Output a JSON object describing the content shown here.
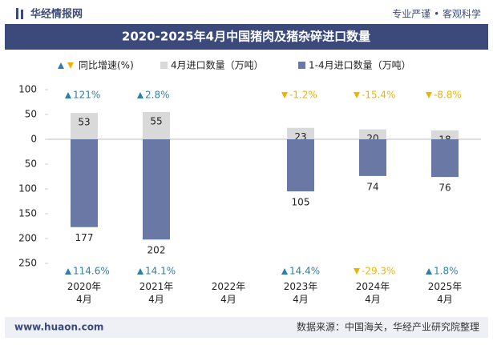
{
  "header": {
    "brand": "华经情报网",
    "slogan": "专业严谨 • 客观科学"
  },
  "footer": {
    "site": "www.huaon.com",
    "source": "数据来源：中国海关，华经产业研究院整理"
  },
  "chart_data": {
    "type": "bar",
    "title": "2020-2025年4月中国猪肉及猪杂碎进口数量",
    "categories": [
      "2020年4月",
      "2021年4月",
      "2022年4月",
      "2023年4月",
      "2024年4月",
      "2025年4月"
    ],
    "series": [
      {
        "name": "4月进口数量（万吨）",
        "color": "#d9d9d9",
        "values": [
          53,
          55,
          null,
          23,
          20,
          18
        ]
      },
      {
        "name": "1-4月进口数量（万吨）",
        "color": "#6a78a6",
        "values": [
          -177,
          -202,
          null,
          -105,
          -74,
          -76
        ],
        "value_labels": [
          "177",
          "202",
          null,
          "105",
          "74",
          "76"
        ]
      }
    ],
    "growth_name": "同比增速(%)",
    "growth": [
      {
        "values": [
          121,
          2.8,
          null,
          -1.2,
          -15.4,
          -8.8
        ],
        "value_labels": [
          "121%",
          "2.8%",
          null,
          "-1.2%",
          "-15.4%",
          "-8.8%"
        ]
      },
      {
        "values": [
          114.6,
          14.1,
          null,
          14.4,
          -29.3,
          1.8
        ],
        "value_labels": [
          "114.6%",
          "14.1%",
          null,
          "14.4%",
          "-29.3%",
          "1.8%"
        ]
      }
    ],
    "up_color": "#2f7fa6",
    "down_color": "#f0b400",
    "ylim": [
      -250,
      100
    ],
    "yticks": [
      100,
      50,
      0,
      {
        "value": -50,
        "label": "50"
      },
      {
        "value": -100,
        "label": "100"
      },
      {
        "value": -150,
        "label": "150"
      },
      {
        "value": -200,
        "label": "200"
      },
      {
        "value": -250,
        "label": "250"
      }
    ]
  }
}
